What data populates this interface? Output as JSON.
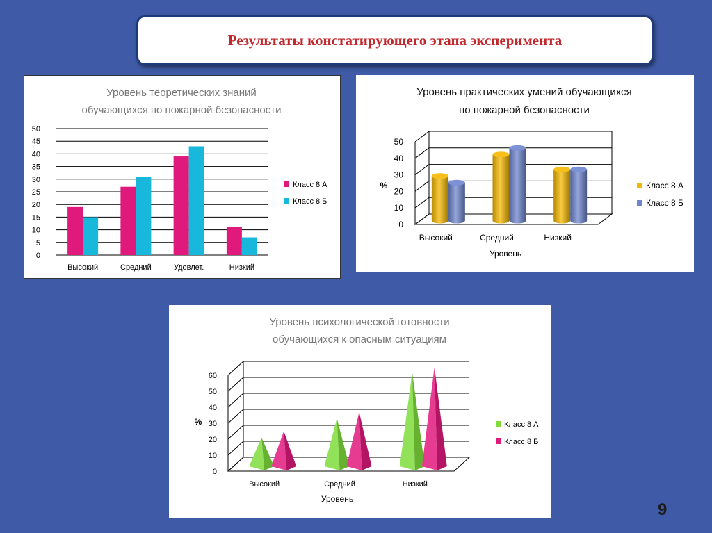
{
  "slide": {
    "title": "Результаты констатирующего этапа эксперимента",
    "page_number": "9",
    "colors": {
      "background": "#3f5aa6",
      "title": "#c0282d"
    }
  },
  "chart_data": [
    {
      "type": "bar",
      "title": "Уровень теоретических знаний обучающихся по пожарной безопасности",
      "title_lines": [
        "Уровень теоретических знаний",
        "обучающихся по пожарной безопасности"
      ],
      "categories": [
        "Высокий",
        "Средний",
        "Удовлет.",
        "Низкий"
      ],
      "series": [
        {
          "name": "Класс 8 А",
          "values": [
            19,
            27,
            39,
            11
          ],
          "color": "#e0197d"
        },
        {
          "name": "Класс 8 Б",
          "values": [
            15,
            31,
            43,
            7
          ],
          "color": "#17b8dc"
        }
      ],
      "ylim": [
        0,
        50
      ],
      "yticks": [
        0,
        5,
        10,
        15,
        20,
        25,
        30,
        35,
        40,
        45,
        50
      ],
      "grid": true,
      "legend": "right"
    },
    {
      "type": "bar",
      "style": "3d-cylinder",
      "title": "Уровень практических умений обучающихся по пожарной безопасности",
      "title_lines": [
        "Уровень практических умений обучающихся",
        "по пожарной безопасности"
      ],
      "categories": [
        "Высокий",
        "Средний",
        "Низкий"
      ],
      "series": [
        {
          "name": "Класс 8 А",
          "values": [
            27,
            40,
            31
          ],
          "color": "#f5b800"
        },
        {
          "name": "Класс 8 Б",
          "values": [
            23,
            44,
            31
          ],
          "color": "#6f86cf"
        }
      ],
      "xlabel": "Уровень",
      "ylabel": "%",
      "ylim": [
        0,
        50
      ],
      "yticks": [
        0,
        10,
        20,
        30,
        40,
        50
      ],
      "grid": true,
      "legend": "right"
    },
    {
      "type": "bar",
      "style": "3d-pyramid",
      "title": "Уровень психологической готовности обучающихся к опасным ситуациям",
      "title_lines": [
        "Уровень  психологической готовности",
        "обучающихся к опасным ситуациям"
      ],
      "categories": [
        "Высокий",
        "Средний",
        "Низкий"
      ],
      "series": [
        {
          "name": "Класс 8 А",
          "values": [
            18,
            30,
            59
          ],
          "color": "#7fdd3c"
        },
        {
          "name": "Класс 8 Б",
          "values": [
            22,
            34,
            62
          ],
          "color": "#e0197d"
        }
      ],
      "xlabel": "Уровень",
      "ylabel": "%",
      "ylim": [
        0,
        60
      ],
      "yticks": [
        0,
        10,
        20,
        30,
        40,
        50,
        60
      ],
      "grid": true,
      "legend": "right"
    }
  ]
}
